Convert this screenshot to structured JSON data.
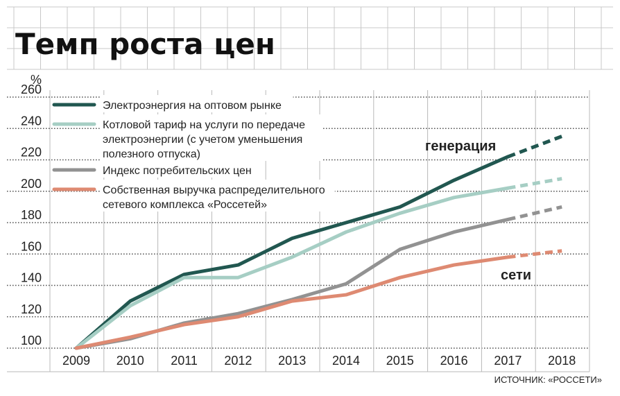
{
  "chart_data": {
    "type": "line",
    "title": "Темп роста цен",
    "ylabel": "%",
    "ylim": [
      100,
      260
    ],
    "yticks": [
      100,
      120,
      140,
      160,
      180,
      200,
      220,
      240,
      260
    ],
    "x": [
      "2009",
      "2010",
      "2011",
      "2012",
      "2013",
      "2014",
      "2015",
      "2016",
      "2017",
      "2018"
    ],
    "forecast_from": "2017",
    "grid": true,
    "legend_position": "top-left",
    "series": [
      {
        "name": "Электроэнергия на оптовом рынке",
        "color": "#215750",
        "values": [
          100,
          130,
          147,
          153,
          170,
          180,
          190,
          207,
          222,
          235
        ]
      },
      {
        "name": "Котловой тариф на услуги по передаче электроэнергии (с учетом уменьшения полезного отпуска)",
        "name_lines": [
          "Котловой тариф на услуги по передаче",
          "электроэнергии (с учетом уменьшения",
          "полезного отпуска)"
        ],
        "color": "#A6CEC4",
        "values": [
          100,
          127,
          145,
          145,
          158,
          174,
          186,
          196,
          202,
          208
        ]
      },
      {
        "name": "Индекс потребительских цен",
        "color": "#929292",
        "values": [
          100,
          106,
          116,
          122,
          131,
          141,
          163,
          174,
          182,
          190
        ]
      },
      {
        "name": "Собственная выручка распределительного сетевого комплекса «Россетей»",
        "name_lines": [
          "Собственная выручка распределительного",
          "сетевого комплекса «Россетей»"
        ],
        "color": "#DE8A72",
        "values": [
          100,
          107,
          115,
          120,
          130,
          134,
          145,
          153,
          158,
          162
        ]
      }
    ],
    "annotations": [
      "генерация",
      "сети"
    ],
    "source": "ИСТОЧНИК: «РОССЕТИ»"
  }
}
